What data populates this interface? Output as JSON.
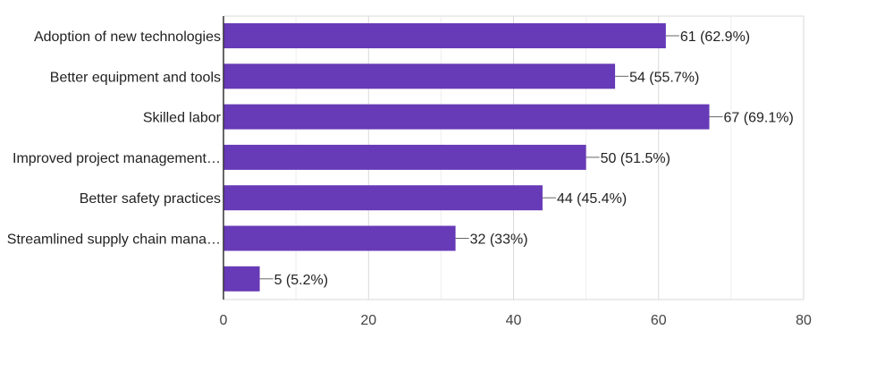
{
  "chart_data": {
    "type": "bar",
    "orientation": "horizontal",
    "title": "",
    "xlabel": "",
    "ylabel": "",
    "xlim": [
      0,
      80
    ],
    "grid": true,
    "legend": "none",
    "categories": [
      "Adoption of new technologies",
      "Better equipment and tools",
      "Skilled labor",
      "Improved project management…",
      "Better safety practices",
      "Streamlined supply chain mana…",
      ""
    ],
    "values": [
      61,
      54,
      67,
      50,
      44,
      32,
      5
    ],
    "data_labels": [
      "61 (62.9%)",
      "54 (55.7%)",
      "67 (69.1%)",
      "50 (51.5%)",
      "44 (45.4%)",
      "32 (33%)",
      "5 (5.2%)"
    ],
    "x_ticks": [
      0,
      20,
      40,
      60,
      80
    ],
    "minor_grid": [
      10,
      30,
      50,
      70
    ],
    "x_tick_labels": [
      "0",
      "20",
      "40",
      "60",
      "80"
    ]
  },
  "colors": {
    "bar": "#673ab7",
    "grid_major": "#d9d9d9",
    "grid_minor": "#eeeeee",
    "axis": "#333333",
    "text": "#222222",
    "label_text": "#222222",
    "tick_text": "#444444",
    "leader_line": "#666666"
  }
}
